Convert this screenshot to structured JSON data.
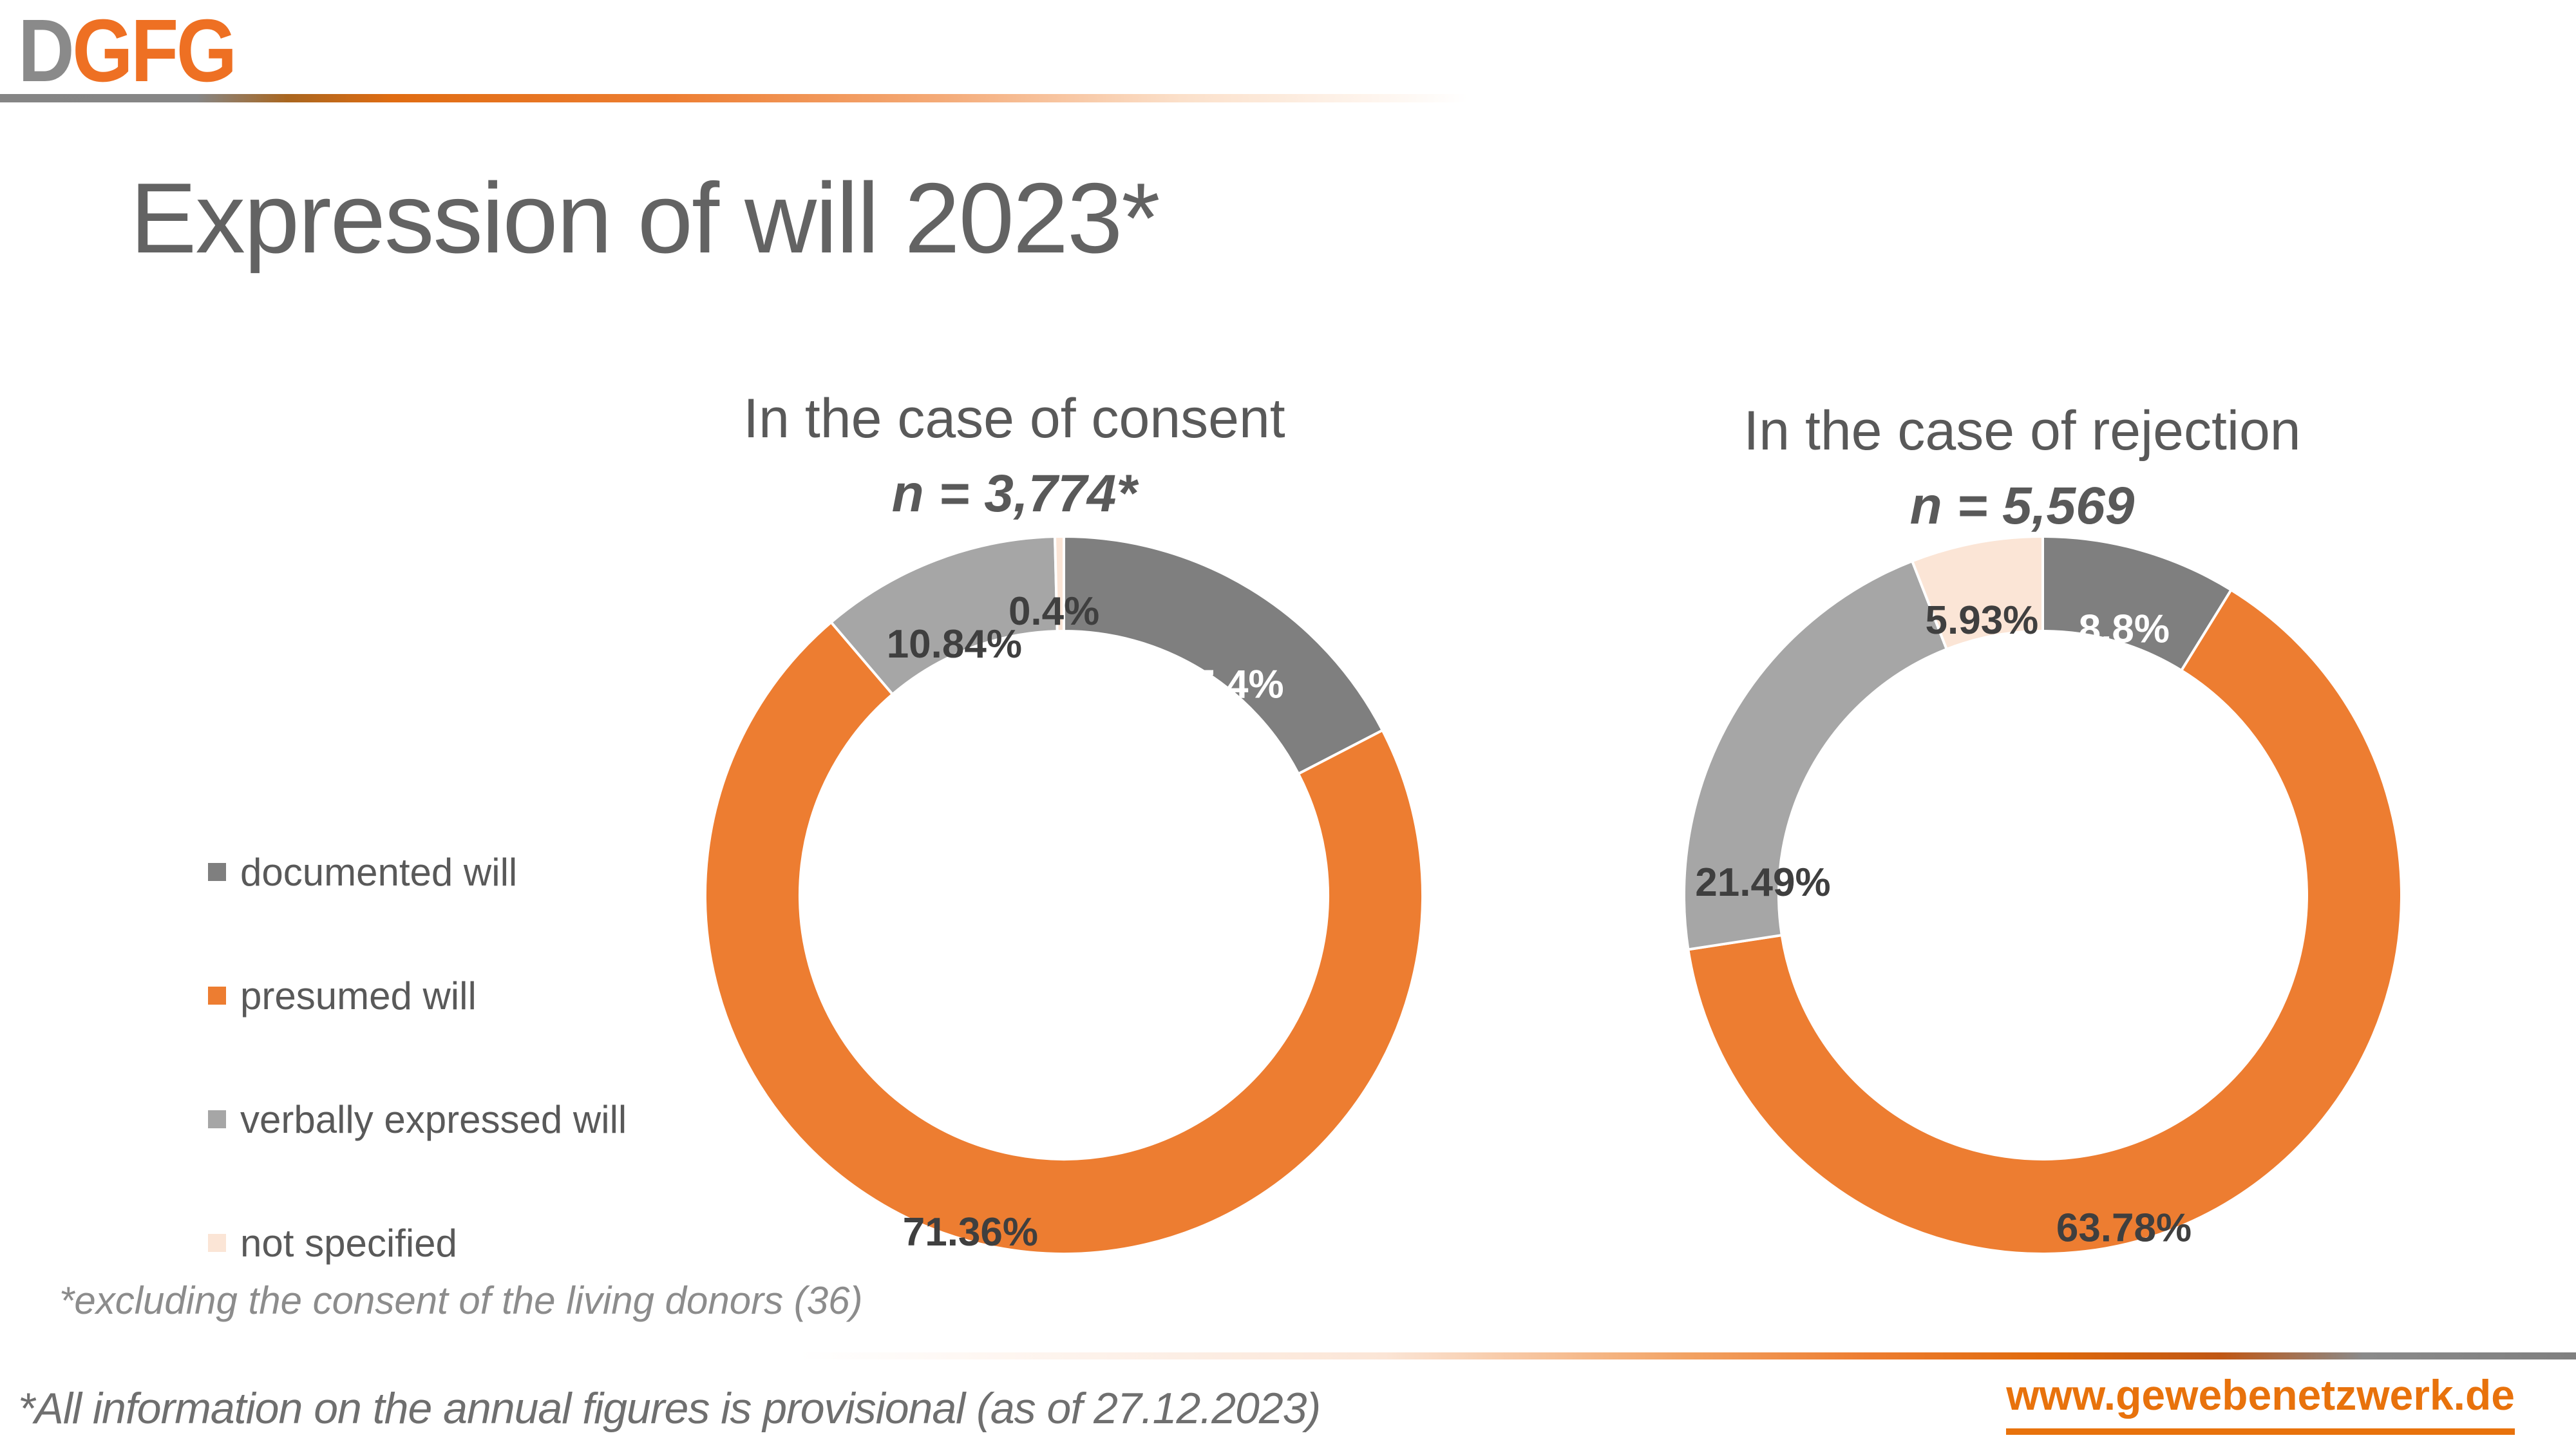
{
  "logo": {
    "part_gray": "D",
    "part_orange": "GFG"
  },
  "slide_title": "Expression of will 2023*",
  "legend": {
    "items": [
      {
        "label": "documented will"
      },
      {
        "label": "presumed will"
      },
      {
        "label": "verbally expressed will"
      },
      {
        "label": "not specified"
      }
    ]
  },
  "footnote": "*excluding the consent of the living donors (36)",
  "footer": {
    "note": "*All information on the annual figures is provisional (as of 27.12.2023)",
    "website": "www.gewebenetzwerk.de"
  },
  "colors": {
    "series": [
      "#7F7F7F",
      "#ED7D31",
      "#A6A6A6",
      "#FBE5D6"
    ],
    "series_label_text": [
      "#FFFFFF",
      "#3F3F3F",
      "#3F3F3F",
      "#3F3F3F"
    ],
    "accent_orange": "#ED7D31",
    "link_orange": "#E8720C",
    "logo_gray": "#8A8A8A",
    "logo_orange": "#EE7023",
    "title_gray": "#636363"
  },
  "chart_data": [
    {
      "type": "pie",
      "donut": true,
      "title": "In the case of consent",
      "subtitle": "n = 3,774*",
      "unit": "%",
      "legend_position": "left-of-charts",
      "categories": [
        "documented will",
        "presumed will",
        "verbally expressed will",
        "not specified"
      ],
      "values": [
        17.4,
        71.36,
        10.84,
        0.4
      ],
      "labels_display": [
        "17.4%",
        "71.36%",
        "10.84%",
        "0.4%"
      ]
    },
    {
      "type": "pie",
      "donut": true,
      "title": "In the case of rejection",
      "subtitle": "n = 5,569",
      "unit": "%",
      "legend_position": "left-of-charts",
      "categories": [
        "documented will",
        "presumed will",
        "verbally expressed will",
        "not specified"
      ],
      "values": [
        8.8,
        63.78,
        21.49,
        5.93
      ],
      "labels_display": [
        "8.8%",
        "63.78%",
        "21.49%",
        "5.93%"
      ]
    }
  ]
}
